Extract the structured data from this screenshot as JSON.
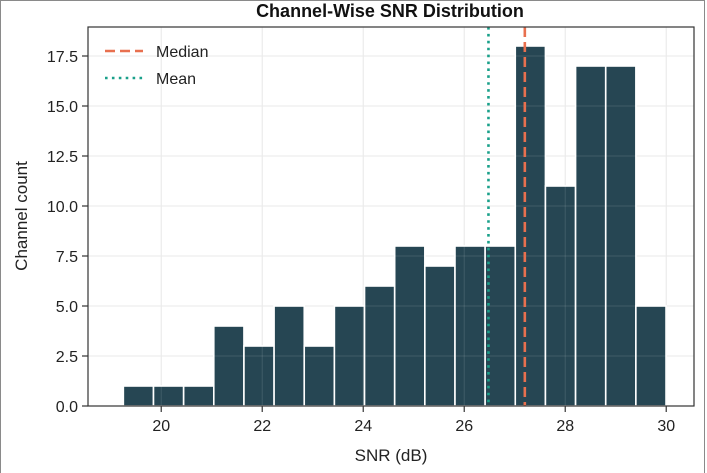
{
  "chart_data": {
    "type": "bar",
    "title": "Channel-Wise SNR Distribution",
    "xlabel": "SNR (dB)",
    "ylabel": "Channel count",
    "xlim": [
      18.55,
      30.55
    ],
    "ylim": [
      0,
      18.95
    ],
    "grid": true,
    "bin_start": 19.25,
    "bin_width": 0.597,
    "counts": [
      1,
      1,
      1,
      4,
      3,
      5,
      3,
      5,
      6,
      8,
      7,
      8,
      8,
      18,
      11,
      17,
      17,
      5
    ],
    "xticks": [
      20,
      22,
      24,
      26,
      28,
      30
    ],
    "xtick_labels": [
      "20",
      "22",
      "24",
      "26",
      "28",
      "30"
    ],
    "yticks": [
      0,
      2.5,
      5,
      7.5,
      10,
      12.5,
      15,
      17.5
    ],
    "ytick_labels": [
      "0.0",
      "2.5",
      "5.0",
      "7.5",
      "10.0",
      "12.5",
      "15.0",
      "17.5"
    ],
    "median": 27.2,
    "mean": 26.48,
    "legend": {
      "position": "top-left",
      "entries": [
        {
          "label": "Median",
          "style": "dashed",
          "color": "#e8704f"
        },
        {
          "label": "Mean",
          "style": "dotted",
          "color": "#1aa08a"
        }
      ]
    },
    "bar_color": "#264653",
    "grid_color": "#e6e6e6"
  }
}
